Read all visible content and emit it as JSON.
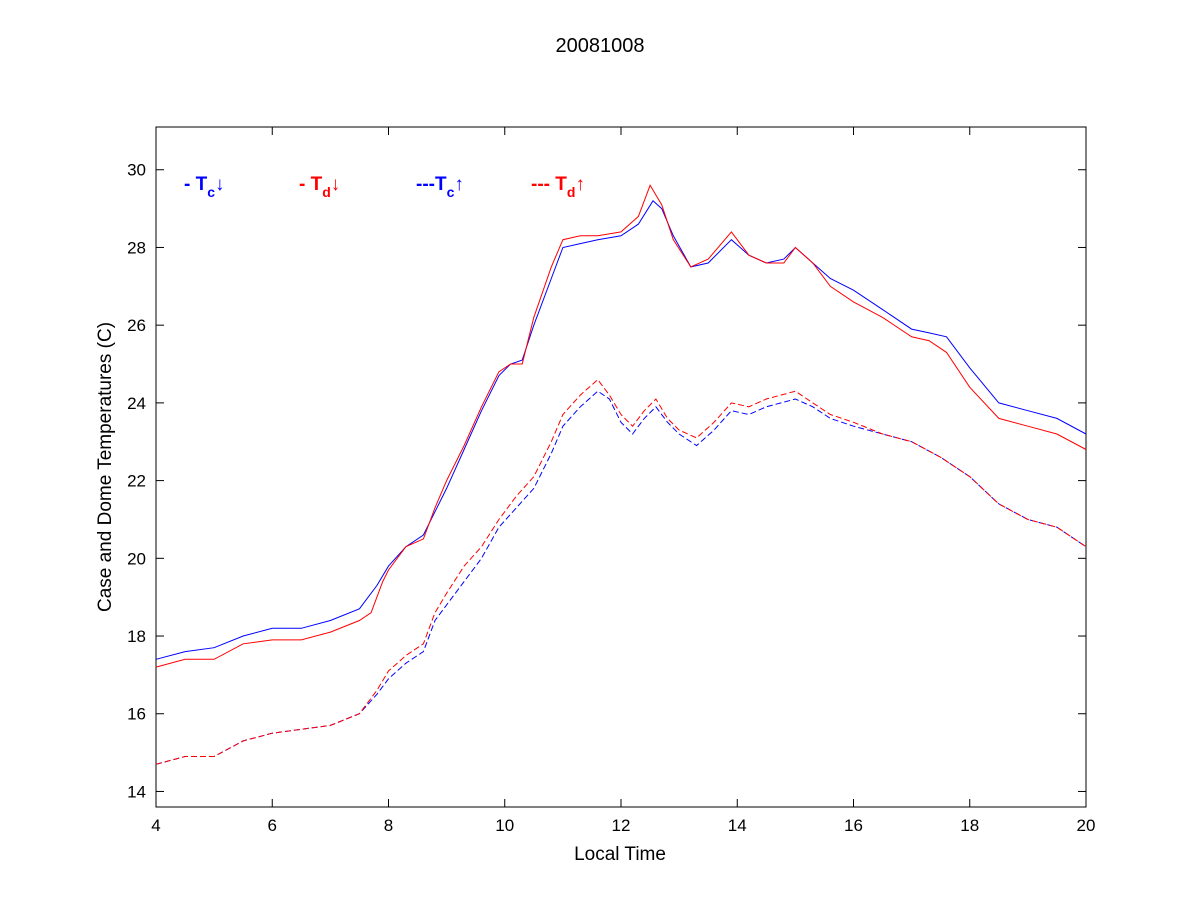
{
  "chart_data": {
    "type": "line",
    "title": "20081008",
    "xlabel": "Local Time",
    "ylabel": "Case and Dome Temperatures (C)",
    "xlim": [
      4,
      20
    ],
    "ylim": [
      13.6,
      31.1
    ],
    "xticks": [
      4,
      6,
      8,
      10,
      12,
      14,
      16,
      18,
      20
    ],
    "yticks": [
      14,
      16,
      18,
      20,
      22,
      24,
      26,
      28,
      30
    ],
    "grid": false,
    "legend_placement": "top-left",
    "series": [
      {
        "id": "tc_down",
        "legend": {
          "prefix": "- T",
          "sub": "c",
          "arrow": "↓"
        },
        "color": "#0000ff",
        "style": "solid",
        "x": [
          4.0,
          4.5,
          5.0,
          5.5,
          6.0,
          6.5,
          7.0,
          7.5,
          7.8,
          8.0,
          8.3,
          8.6,
          8.8,
          9.0,
          9.3,
          9.6,
          9.9,
          10.1,
          10.3,
          10.5,
          10.8,
          11.0,
          11.3,
          11.6,
          12.0,
          12.3,
          12.55,
          12.7,
          12.9,
          13.2,
          13.5,
          13.9,
          14.2,
          14.5,
          14.8,
          15.0,
          15.3,
          15.6,
          16.0,
          16.5,
          17.0,
          17.3,
          17.6,
          18.0,
          18.5,
          19.0,
          19.5,
          20.0
        ],
        "y": [
          17.4,
          17.6,
          17.7,
          18.0,
          18.2,
          18.2,
          18.4,
          18.7,
          19.3,
          19.8,
          20.3,
          20.6,
          21.2,
          21.8,
          22.8,
          23.8,
          24.7,
          25.0,
          25.1,
          26.0,
          27.2,
          28.0,
          28.1,
          28.2,
          28.3,
          28.6,
          29.2,
          29.0,
          28.3,
          27.5,
          27.6,
          28.2,
          27.8,
          27.6,
          27.7,
          28.0,
          27.6,
          27.2,
          26.9,
          26.4,
          25.9,
          25.8,
          25.7,
          24.9,
          24.0,
          23.8,
          23.6,
          23.2
        ]
      },
      {
        "id": "td_down",
        "legend": {
          "prefix": "- T",
          "sub": "d",
          "arrow": "↓"
        },
        "color": "#ff0000",
        "style": "solid",
        "x": [
          4.0,
          4.5,
          5.0,
          5.5,
          6.0,
          6.5,
          7.0,
          7.5,
          7.7,
          7.9,
          8.0,
          8.3,
          8.6,
          8.8,
          9.0,
          9.3,
          9.6,
          9.9,
          10.1,
          10.3,
          10.5,
          10.8,
          11.0,
          11.3,
          11.6,
          12.0,
          12.3,
          12.5,
          12.7,
          12.9,
          13.2,
          13.5,
          13.9,
          14.2,
          14.5,
          14.8,
          15.0,
          15.3,
          15.6,
          16.0,
          16.5,
          17.0,
          17.3,
          17.6,
          18.0,
          18.5,
          19.0,
          19.5,
          20.0
        ],
        "y": [
          17.2,
          17.4,
          17.4,
          17.8,
          17.9,
          17.9,
          18.1,
          18.4,
          18.6,
          19.4,
          19.7,
          20.3,
          20.5,
          21.3,
          22.0,
          22.9,
          23.9,
          24.8,
          25.0,
          25.0,
          26.2,
          27.5,
          28.2,
          28.3,
          28.3,
          28.4,
          28.8,
          29.6,
          29.1,
          28.2,
          27.5,
          27.7,
          28.4,
          27.8,
          27.6,
          27.6,
          28.0,
          27.6,
          27.0,
          26.6,
          26.2,
          25.7,
          25.6,
          25.3,
          24.4,
          23.6,
          23.4,
          23.2,
          22.8
        ]
      },
      {
        "id": "tc_up",
        "legend": {
          "prefix": "---T",
          "sub": "c",
          "arrow": "↑"
        },
        "color": "#0000ff",
        "style": "dashed",
        "x": [
          4.0,
          4.5,
          5.0,
          5.5,
          6.0,
          6.5,
          7.0,
          7.5,
          7.8,
          8.0,
          8.3,
          8.6,
          8.8,
          9.0,
          9.3,
          9.6,
          9.9,
          10.2,
          10.5,
          10.8,
          11.0,
          11.3,
          11.6,
          11.8,
          12.0,
          12.2,
          12.4,
          12.6,
          12.8,
          13.0,
          13.3,
          13.6,
          13.9,
          14.2,
          14.5,
          15.0,
          15.3,
          15.6,
          16.0,
          16.5,
          17.0,
          17.5,
          18.0,
          18.5,
          19.0,
          19.5,
          20.0
        ],
        "y": [
          14.7,
          14.9,
          14.9,
          15.3,
          15.5,
          15.6,
          15.7,
          16.0,
          16.5,
          16.9,
          17.3,
          17.6,
          18.4,
          18.8,
          19.4,
          20.0,
          20.8,
          21.3,
          21.8,
          22.7,
          23.4,
          23.9,
          24.3,
          24.1,
          23.5,
          23.2,
          23.6,
          23.9,
          23.5,
          23.2,
          22.9,
          23.3,
          23.8,
          23.7,
          23.9,
          24.1,
          23.9,
          23.6,
          23.4,
          23.2,
          23.0,
          22.6,
          22.1,
          21.4,
          21.0,
          20.8,
          20.3
        ]
      },
      {
        "id": "td_up",
        "legend": {
          "prefix": "--- T",
          "sub": "d",
          "arrow": "↑"
        },
        "color": "#ff0000",
        "style": "dashed",
        "x": [
          4.0,
          4.5,
          5.0,
          5.5,
          6.0,
          6.5,
          7.0,
          7.5,
          7.8,
          8.0,
          8.3,
          8.6,
          8.8,
          9.0,
          9.3,
          9.6,
          9.9,
          10.2,
          10.5,
          10.8,
          11.0,
          11.3,
          11.6,
          11.8,
          12.0,
          12.2,
          12.4,
          12.6,
          12.8,
          13.0,
          13.3,
          13.6,
          13.9,
          14.2,
          14.5,
          15.0,
          15.3,
          15.6,
          16.0,
          16.5,
          17.0,
          17.5,
          18.0,
          18.5,
          19.0,
          19.5,
          20.0
        ],
        "y": [
          14.7,
          14.9,
          14.9,
          15.3,
          15.5,
          15.6,
          15.7,
          16.0,
          16.6,
          17.1,
          17.5,
          17.8,
          18.6,
          19.1,
          19.8,
          20.3,
          21.0,
          21.6,
          22.1,
          23.0,
          23.7,
          24.2,
          24.6,
          24.2,
          23.7,
          23.4,
          23.8,
          24.1,
          23.6,
          23.3,
          23.1,
          23.5,
          24.0,
          23.9,
          24.1,
          24.3,
          24.0,
          23.7,
          23.5,
          23.2,
          23.0,
          22.6,
          22.1,
          21.4,
          21.0,
          20.8,
          20.3
        ]
      }
    ]
  }
}
